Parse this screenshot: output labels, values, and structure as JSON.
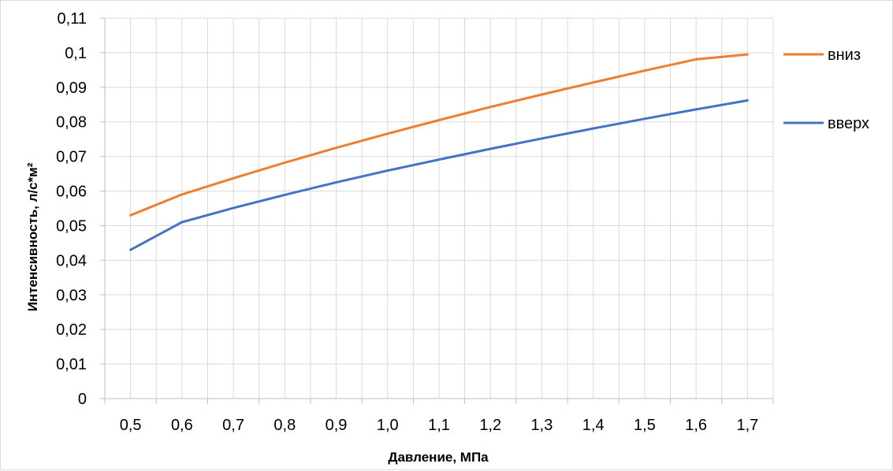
{
  "chart_data": {
    "type": "line",
    "xlabel": "Давление, МПа",
    "ylabel": "Интенсивность, л/с*м²",
    "categories": [
      "0,5",
      "0,6",
      "0,7",
      "0,8",
      "0,9",
      "1,0",
      "1,1",
      "1,2",
      "1,3",
      "1,4",
      "1,5",
      "1,6",
      "1,7"
    ],
    "yticks": [
      "0",
      "0,01",
      "0,02",
      "0,03",
      "0,04",
      "0,05",
      "0,06",
      "0,07",
      "0,08",
      "0,09",
      "0,1",
      "0,11"
    ],
    "ylim": [
      0,
      0.11
    ],
    "grid": true,
    "legend_position": "right",
    "series": [
      {
        "name": "вниз",
        "color": "#ED7D31",
        "points": [
          [
            0.5,
            0.053
          ],
          [
            0.6,
            0.059
          ],
          [
            0.7,
            0.0637
          ],
          [
            0.8,
            0.0682
          ],
          [
            0.9,
            0.0725
          ],
          [
            1.0,
            0.0766
          ],
          [
            1.1,
            0.0805
          ],
          [
            1.2,
            0.0843
          ],
          [
            1.3,
            0.0879
          ],
          [
            1.4,
            0.0914
          ],
          [
            1.5,
            0.0948
          ],
          [
            1.6,
            0.0981
          ],
          [
            1.7,
            0.0995
          ]
        ]
      },
      {
        "name": "вверх",
        "color": "#4472C4",
        "points": [
          [
            0.5,
            0.043
          ],
          [
            0.6,
            0.051
          ],
          [
            0.7,
            0.0551
          ],
          [
            0.8,
            0.0589
          ],
          [
            0.9,
            0.0625
          ],
          [
            1.0,
            0.0659
          ],
          [
            1.1,
            0.0691
          ],
          [
            1.2,
            0.0722
          ],
          [
            1.3,
            0.0752
          ],
          [
            1.4,
            0.0781
          ],
          [
            1.5,
            0.0809
          ],
          [
            1.6,
            0.0836
          ],
          [
            1.7,
            0.0862
          ]
        ]
      }
    ]
  }
}
